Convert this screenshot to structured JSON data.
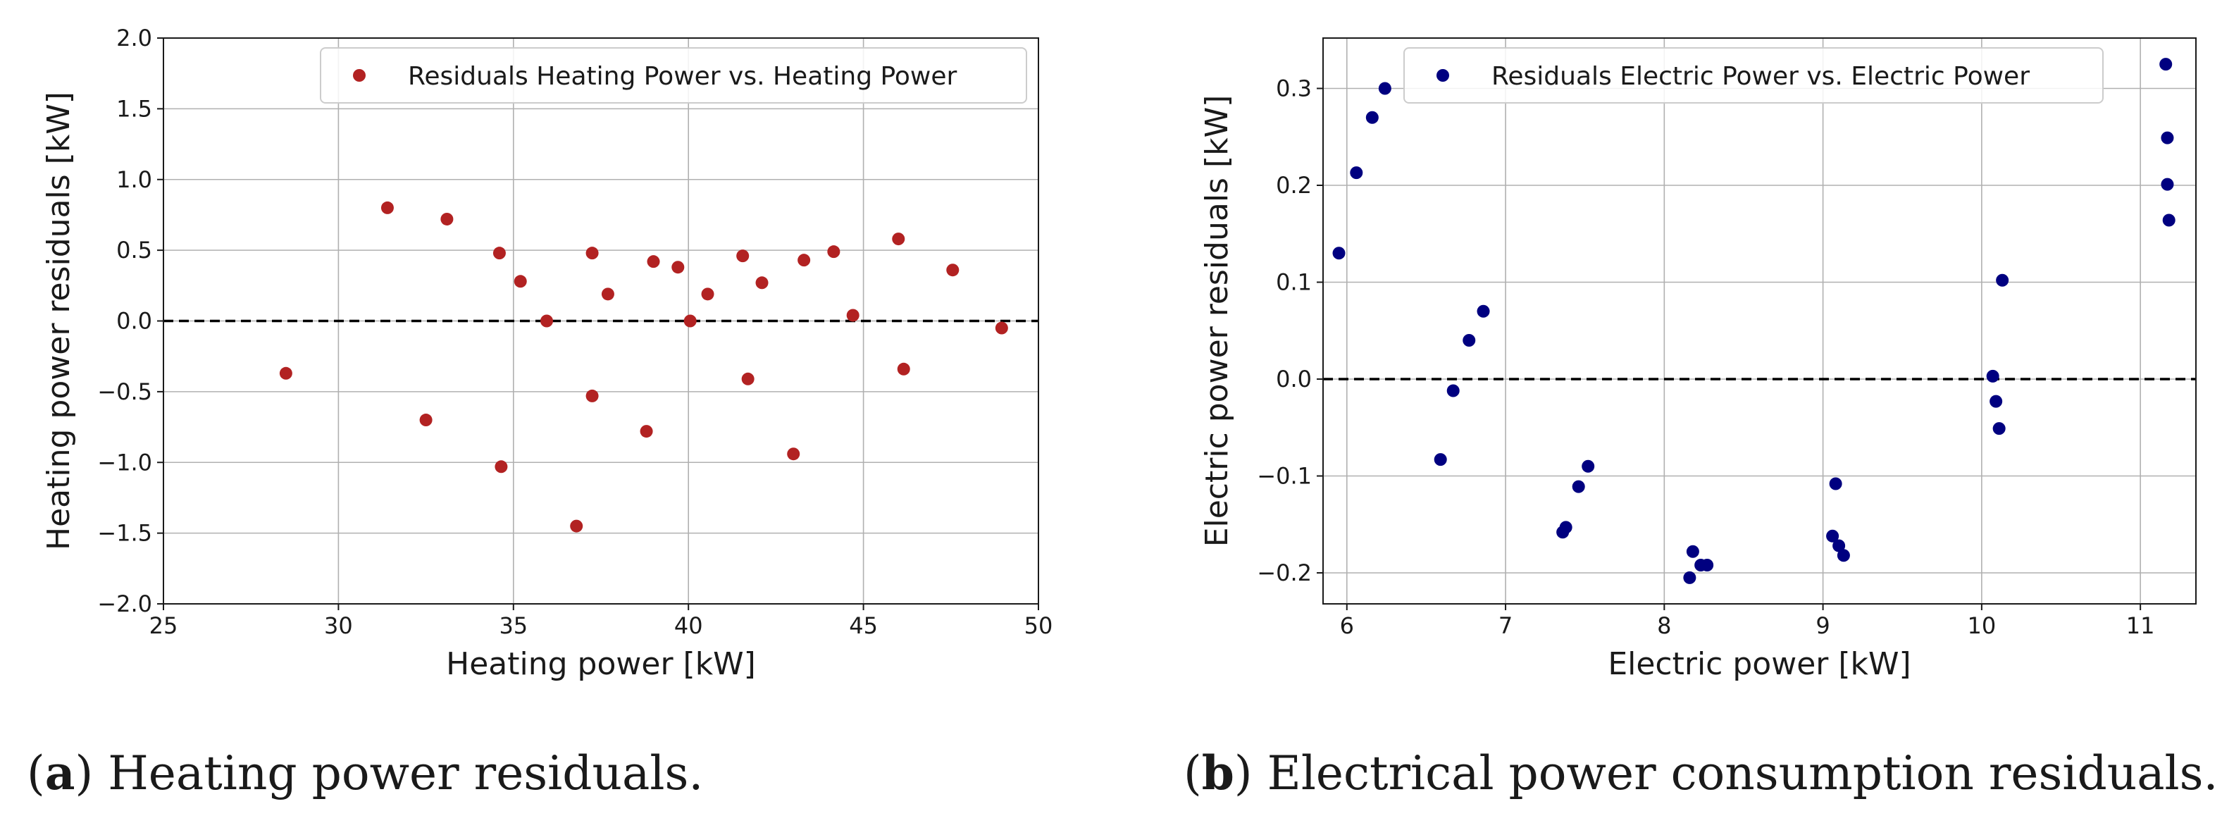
{
  "chart_data": [
    {
      "type": "scatter",
      "panel": "a",
      "xlabel": "Heating power [kW]",
      "ylabel": "Heating power residuals [kW]",
      "xlim": [
        25,
        50
      ],
      "ylim": [
        -2.0,
        2.0
      ],
      "xticks": [
        "25",
        "30",
        "35",
        "40",
        "45",
        "50"
      ],
      "yticks": [
        "−2.0",
        "−1.5",
        "−1.0",
        "−0.5",
        "0.0",
        "0.5",
        "1.0",
        "1.5",
        "2.0"
      ],
      "grid": true,
      "legend_position": "top-right",
      "reference_line": 0,
      "series": [
        {
          "name": "Residuals Heating Power vs. Heating Power",
          "color": "#b22222",
          "x": [
            28.5,
            31.4,
            32.5,
            33.1,
            34.6,
            34.65,
            35.2,
            35.95,
            36.8,
            37.25,
            37.25,
            37.7,
            38.8,
            39.0,
            39.7,
            40.05,
            40.55,
            41.55,
            41.7,
            42.1,
            43.0,
            43.3,
            44.15,
            44.7,
            46.0,
            46.15,
            47.55,
            48.95
          ],
          "y": [
            -0.37,
            0.8,
            -0.7,
            0.72,
            0.48,
            -1.03,
            0.28,
            0.0,
            -1.45,
            0.48,
            -0.53,
            0.19,
            -0.78,
            0.42,
            0.38,
            0.0,
            0.19,
            0.46,
            -0.41,
            0.27,
            -0.94,
            0.43,
            0.49,
            0.04,
            0.58,
            -0.34,
            0.36,
            -0.05
          ]
        }
      ]
    },
    {
      "type": "scatter",
      "panel": "b",
      "xlabel": "Electric power [kW]",
      "ylabel": "Electric power residuals [kW]",
      "xlim": [
        5.85,
        11.35
      ],
      "ylim": [
        -0.232,
        0.352
      ],
      "xticks": [
        "6",
        "7",
        "8",
        "9",
        "10",
        "11"
      ],
      "yticks": [
        "−0.2",
        "−0.1",
        "0.0",
        "0.1",
        "0.2",
        "0.3"
      ],
      "grid": true,
      "legend_position": "top-right",
      "reference_line": 0,
      "series": [
        {
          "name": "Residuals Electric Power vs. Electric Power",
          "color": "#000080",
          "x": [
            5.95,
            6.06,
            6.16,
            6.24,
            6.59,
            6.67,
            6.77,
            6.86,
            7.36,
            7.38,
            7.46,
            7.52,
            8.16,
            8.18,
            8.23,
            8.27,
            9.06,
            9.08,
            9.1,
            9.13,
            10.07,
            10.09,
            10.11,
            10.13,
            11.16,
            11.17,
            11.17,
            11.18
          ],
          "y": [
            0.13,
            0.213,
            0.27,
            0.3,
            -0.083,
            -0.012,
            0.04,
            0.07,
            -0.158,
            -0.153,
            -0.111,
            -0.09,
            -0.205,
            -0.178,
            -0.192,
            -0.192,
            -0.162,
            -0.108,
            -0.172,
            -0.182,
            0.003,
            -0.023,
            -0.051,
            0.102,
            0.325,
            0.201,
            0.249,
            0.164
          ]
        }
      ]
    }
  ],
  "captions": {
    "a": {
      "label": "a",
      "text": "Heating power residuals."
    },
    "b": {
      "label": "b",
      "text": "Electrical power consumption residuals."
    }
  }
}
